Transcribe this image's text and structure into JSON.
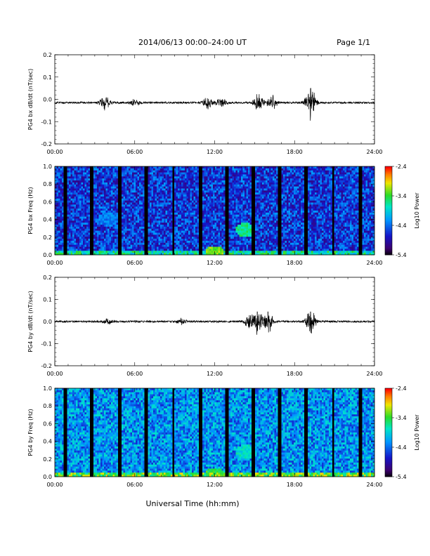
{
  "header": {
    "title": "2014/06/13  00:00–24:00 UT",
    "page": "Page 1/1"
  },
  "xlabel": "Universal Time (hh:mm)",
  "chart_data": [
    {
      "type": "line",
      "ylabel": "PG4 bx dB/dt (nT/sec)",
      "ylim": [
        -0.2,
        0.2
      ],
      "yticks": [
        "0.2",
        "0.1",
        "0.0",
        "-0.1",
        "-0.2"
      ],
      "xticks": [
        "00:00",
        "06:00",
        "12:00",
        "18:00",
        "24:00"
      ],
      "xlim_hours": [
        0,
        24
      ],
      "baseline": -0.015,
      "bursts": [
        {
          "t": 3.8,
          "amp": 0.025
        },
        {
          "t": 6.0,
          "amp": 0.01
        },
        {
          "t": 11.5,
          "amp": 0.02
        },
        {
          "t": 12.5,
          "amp": 0.018
        },
        {
          "t": 15.3,
          "amp": 0.03
        },
        {
          "t": 16.3,
          "amp": 0.025
        },
        {
          "t": 19.2,
          "amp": 0.06
        }
      ]
    },
    {
      "type": "heatmap",
      "ylabel": "PG4 bx Freq (Hz)",
      "ylim": [
        0.0,
        1.0
      ],
      "yticks": [
        "1.0",
        "0.8",
        "0.6",
        "0.4",
        "0.2",
        "0.0"
      ],
      "xticks": [
        "00:00",
        "06:00",
        "12:00",
        "18:00",
        "24:00"
      ],
      "xlim_hours": [
        0,
        24
      ],
      "colorbar": {
        "label": "Log10 Power",
        "ticks": [
          "-2.4",
          "-3.4",
          "-4.4",
          "-5.4"
        ],
        "range": [
          -5.4,
          -2.4
        ]
      },
      "gaps_hours": [
        0.8,
        2.8,
        4.9,
        6.9,
        8.9,
        10.9,
        12.9,
        14.9,
        16.9,
        18.9,
        20.9,
        22.9
      ],
      "features": [
        {
          "t": 4.0,
          "f": 0.4,
          "level": -4.3
        },
        {
          "t": 14.3,
          "f": 0.28,
          "level": -3.6
        },
        {
          "t": 12.0,
          "f": 0.02,
          "level": -3.2
        }
      ],
      "background_level": -4.6
    },
    {
      "type": "line",
      "ylabel": "PG4 by dB/dt (nT/sec)",
      "ylim": [
        -0.2,
        0.2
      ],
      "yticks": [
        "0.2",
        "0.1",
        "0.0",
        "-0.1",
        "-0.2"
      ],
      "xticks": [
        "00:00",
        "06:00",
        "12:00",
        "18:00",
        "24:00"
      ],
      "xlim_hours": [
        0,
        24
      ],
      "baseline": 0.0,
      "bursts": [
        {
          "t": 4.0,
          "amp": 0.01
        },
        {
          "t": 9.5,
          "amp": 0.012
        },
        {
          "t": 14.5,
          "amp": 0.02
        },
        {
          "t": 15.2,
          "amp": 0.04
        },
        {
          "t": 16.0,
          "amp": 0.04
        },
        {
          "t": 19.2,
          "amp": 0.04
        }
      ]
    },
    {
      "type": "heatmap",
      "ylabel": "PG4 by Freq (Hz)",
      "ylim": [
        0.0,
        1.0
      ],
      "yticks": [
        "1.0",
        "0.8",
        "0.6",
        "0.4",
        "0.2",
        "0.0"
      ],
      "xticks": [
        "00:00",
        "06:00",
        "12:00",
        "18:00",
        "24:00"
      ],
      "xlim_hours": [
        0,
        24
      ],
      "colorbar": {
        "label": "Log10 Power",
        "ticks": [
          "-2.4",
          "-3.4",
          "-4.4",
          "-5.4"
        ],
        "range": [
          -5.4,
          -2.4
        ]
      },
      "gaps_hours": [
        0.8,
        2.8,
        4.9,
        6.9,
        8.9,
        10.9,
        12.9,
        14.9,
        16.9,
        18.9,
        20.9,
        22.9
      ],
      "features": [
        {
          "t": 4.0,
          "f": 0.45,
          "level": -4.3
        },
        {
          "t": 14.3,
          "f": 0.28,
          "level": -3.8
        },
        {
          "t": 12.0,
          "f": 0.02,
          "level": -3.4
        }
      ],
      "background_level": -4.2
    }
  ]
}
